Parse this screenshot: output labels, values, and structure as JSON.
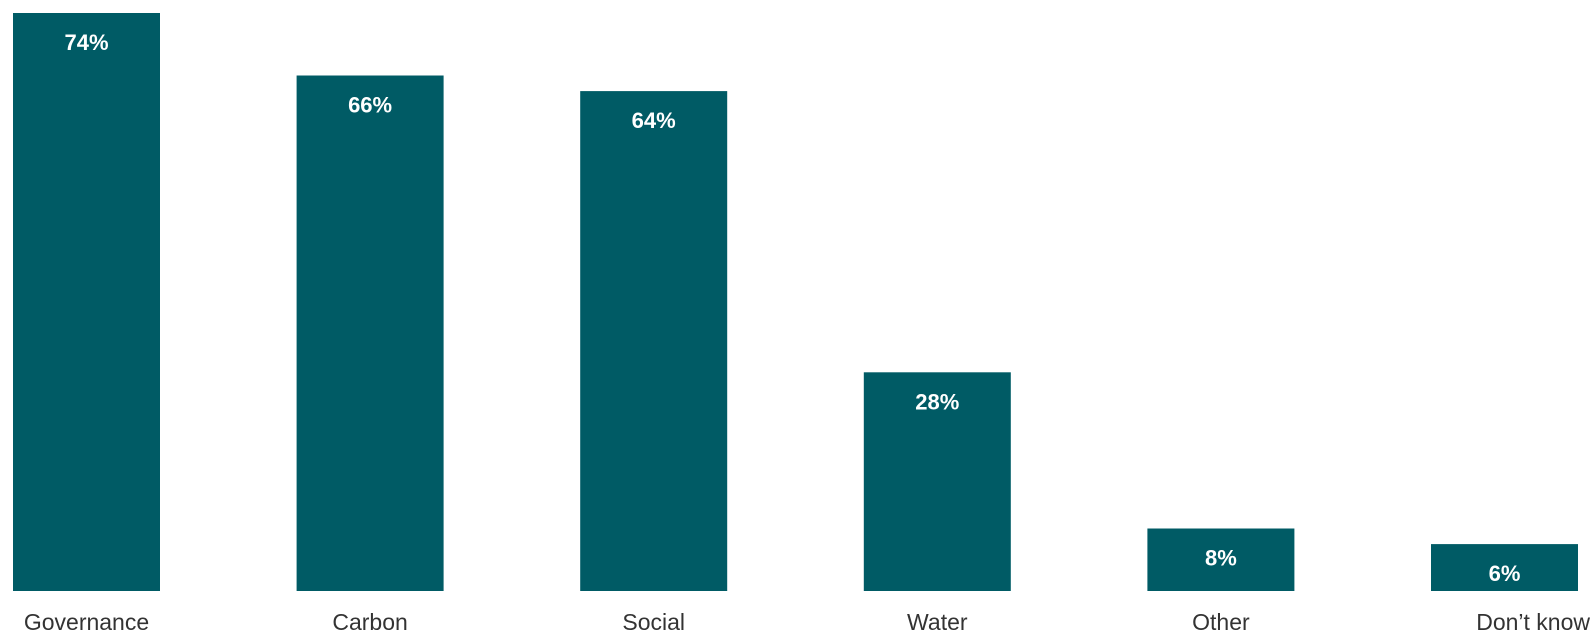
{
  "chart_data": {
    "type": "bar",
    "categories": [
      "Governance",
      "Carbon",
      "Social",
      "Water",
      "Other",
      "Don’t know"
    ],
    "values": [
      74,
      66,
      64,
      28,
      8,
      6
    ],
    "value_labels": [
      "74%",
      "66%",
      "64%",
      "28%",
      "8%",
      "6%"
    ],
    "unit": "%",
    "title": "",
    "xlabel": "",
    "ylabel": "",
    "ylim": [
      0,
      74
    ],
    "grid": false,
    "legend": "none",
    "colors": {
      "bar": "#005b65",
      "value_text": "#ffffff",
      "category_text": "#333333"
    }
  }
}
